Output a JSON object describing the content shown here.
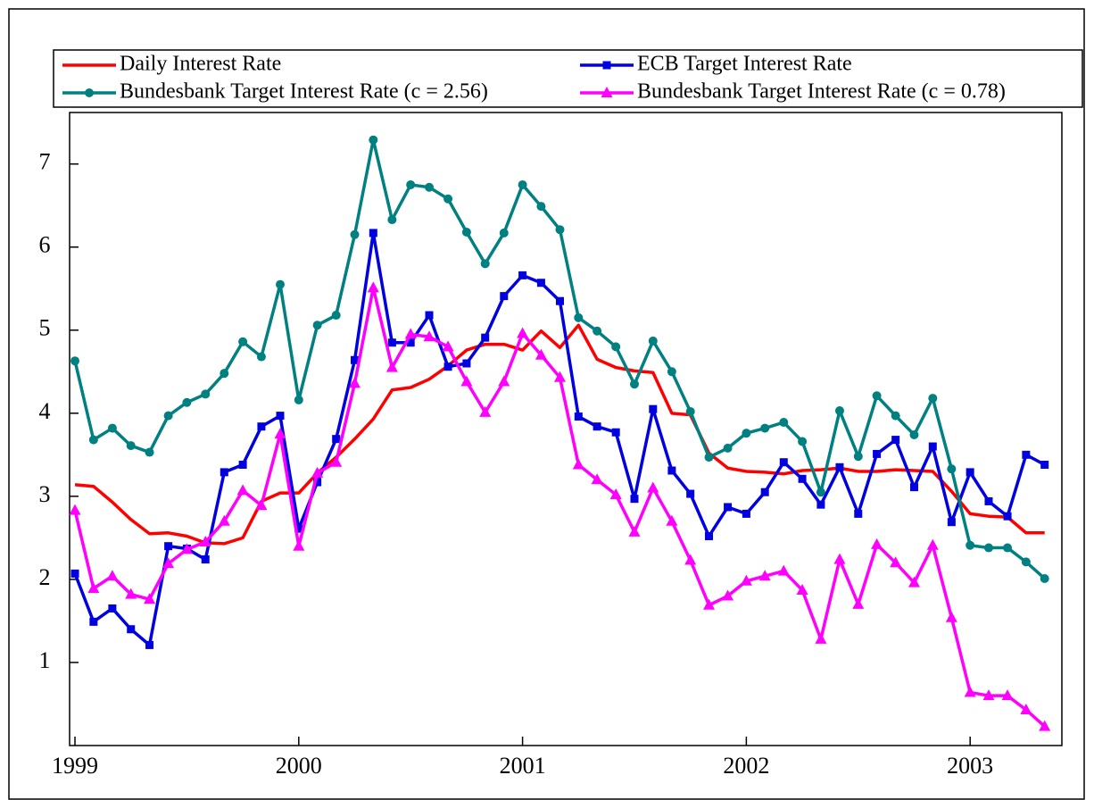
{
  "chart_data": {
    "type": "line",
    "legend": "top",
    "grid": false,
    "x": [
      1999,
      1999.083,
      1999.167,
      1999.25,
      1999.333,
      1999.417,
      1999.5,
      1999.583,
      1999.667,
      1999.75,
      1999.833,
      1999.917,
      2000,
      2000.083,
      2000.167,
      2000.25,
      2000.333,
      2000.417,
      2000.5,
      2000.583,
      2000.667,
      2000.75,
      2000.833,
      2000.917,
      2001,
      2001.083,
      2001.167,
      2001.25,
      2001.333,
      2001.417,
      2001.5,
      2001.583,
      2001.667,
      2001.75,
      2001.833,
      2001.917,
      2002,
      2002.083,
      2002.167,
      2002.25,
      2002.333,
      2002.417,
      2002.5,
      2002.583,
      2002.667,
      2002.75,
      2002.833,
      2002.917,
      2003,
      2003.083,
      2003.167,
      2003.25,
      2003.333
    ],
    "xlim": [
      1998.976,
      2003.41
    ],
    "xticks": [
      1999,
      2000,
      2001,
      2002,
      2003
    ],
    "ylim": [
      0,
      7.62
    ],
    "yticks": [
      1,
      2,
      3,
      4,
      5,
      6,
      7
    ],
    "series": [
      {
        "name": "Daily Interest Rate",
        "color": "#ff0000",
        "marker": "none",
        "values": [
          3.14,
          3.12,
          2.93,
          2.72,
          2.55,
          2.56,
          2.52,
          2.44,
          2.43,
          2.5,
          2.94,
          3.04,
          3.04,
          3.28,
          3.47,
          3.69,
          3.93,
          4.28,
          4.31,
          4.41,
          4.57,
          4.76,
          4.83,
          4.83,
          4.76,
          4.99,
          4.79,
          5.06,
          4.65,
          4.55,
          4.51,
          4.49,
          4.0,
          3.98,
          3.52,
          3.34,
          3.3,
          3.29,
          3.27,
          3.31,
          3.32,
          3.34,
          3.3,
          3.3,
          3.32,
          3.31,
          3.3,
          3.06,
          2.79,
          2.76,
          2.75,
          2.56,
          2.56
        ]
      },
      {
        "name": "ECB Target Interest Rate",
        "color": "#0000e0",
        "marker": "square",
        "values": [
          2.07,
          1.49,
          1.65,
          1.4,
          1.21,
          2.4,
          2.37,
          2.24,
          3.29,
          3.38,
          3.84,
          3.97,
          2.61,
          3.17,
          3.69,
          4.64,
          6.17,
          4.85,
          4.85,
          5.18,
          4.56,
          4.6,
          4.91,
          5.41,
          5.66,
          5.57,
          5.35,
          3.96,
          3.84,
          3.77,
          2.97,
          4.05,
          3.31,
          3.03,
          2.52,
          2.87,
          2.79,
          3.05,
          3.41,
          3.21,
          2.9,
          3.35,
          2.79,
          3.51,
          3.68,
          3.11,
          3.6,
          2.69,
          3.29,
          2.94,
          2.76,
          3.5,
          3.38
        ]
      },
      {
        "name": "Bundesbank Target Interest Rate (c = 2.56)",
        "color": "#008080",
        "marker": "circle",
        "values": [
          4.63,
          3.68,
          3.82,
          3.61,
          3.53,
          3.97,
          4.13,
          4.23,
          4.48,
          4.86,
          4.68,
          5.55,
          4.16,
          5.06,
          5.18,
          6.15,
          7.29,
          6.33,
          6.75,
          6.72,
          6.58,
          6.18,
          5.8,
          6.17,
          6.75,
          6.49,
          6.21,
          5.15,
          4.99,
          4.8,
          4.35,
          4.87,
          4.5,
          4.02,
          3.47,
          3.58,
          3.76,
          3.82,
          3.89,
          3.66,
          3.05,
          4.03,
          3.48,
          4.21,
          3.97,
          3.74,
          4.18,
          3.33,
          2.41,
          2.38,
          2.38,
          2.21,
          2.01
        ]
      },
      {
        "name": "Bundesbank Target Interest Rate (c = 0.78)",
        "color": "#ff00ff",
        "marker": "triangle",
        "values": [
          2.83,
          1.89,
          2.04,
          1.82,
          1.76,
          2.19,
          2.36,
          2.45,
          2.7,
          3.07,
          2.89,
          3.75,
          2.4,
          3.28,
          3.41,
          4.36,
          5.51,
          4.55,
          4.95,
          4.92,
          4.8,
          4.38,
          4.01,
          4.38,
          4.96,
          4.7,
          4.43,
          3.38,
          3.2,
          3.02,
          2.57,
          3.1,
          2.7,
          2.23,
          1.69,
          1.8,
          1.98,
          2.04,
          2.1,
          1.87,
          1.28,
          2.24,
          1.7,
          2.42,
          2.2,
          1.96,
          2.41,
          1.54,
          0.64,
          0.6,
          0.6,
          0.43,
          0.23
        ]
      }
    ]
  }
}
